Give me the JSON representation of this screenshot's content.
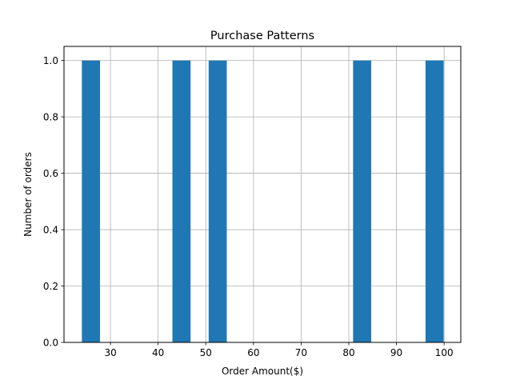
{
  "chart_data": {
    "type": "bar",
    "title": "Purchase Patterns",
    "xlabel": "Order Amount($)",
    "ylabel": "Number of orders",
    "xlim": [
      20.25,
      103.5
    ],
    "ylim": [
      0,
      1.05
    ],
    "xticks": [
      30,
      40,
      50,
      60,
      70,
      80,
      90,
      100
    ],
    "xtick_labels": [
      "30",
      "40",
      "50",
      "60",
      "70",
      "80",
      "90",
      "100"
    ],
    "yticks": [
      0.0,
      0.2,
      0.4,
      0.6,
      0.8,
      1.0
    ],
    "ytick_labels": [
      "0.0",
      "0.2",
      "0.4",
      "0.6",
      "0.8",
      "1.0"
    ],
    "grid": true,
    "bar_color": "#1f77b4",
    "series": [
      {
        "bins": [
          {
            "x0": 24.0,
            "x1": 27.8,
            "count": 1
          },
          {
            "x0": 43.0,
            "x1": 46.8,
            "count": 1
          },
          {
            "x0": 50.6,
            "x1": 54.4,
            "count": 1
          },
          {
            "x0": 80.9,
            "x1": 84.7,
            "count": 1
          },
          {
            "x0": 96.1,
            "x1": 99.9,
            "count": 1
          }
        ]
      }
    ]
  }
}
